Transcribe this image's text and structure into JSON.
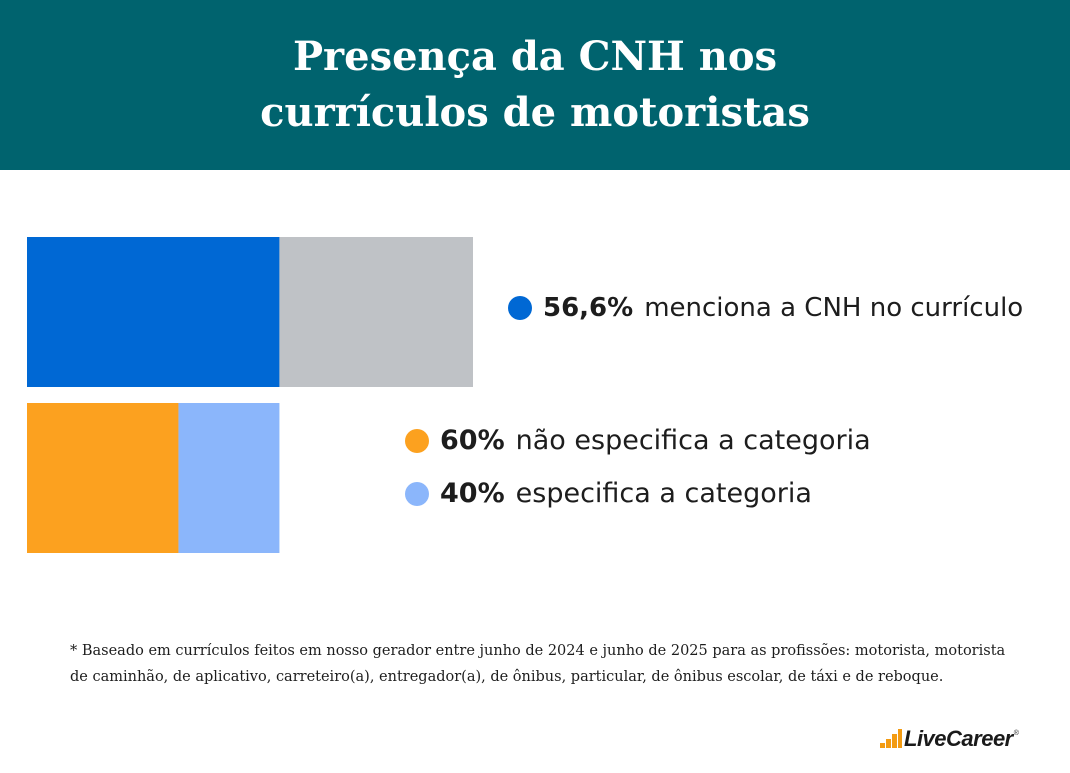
{
  "title": {
    "line1": "Presença da CNH nos",
    "line2": "currículos de motoristas"
  },
  "chart_data": {
    "type": "bar",
    "orientation": "horizontal-stacked",
    "bars": [
      {
        "segments": [
          {
            "value": 56.6,
            "color": "#0068d4"
          },
          {
            "value": 43.4,
            "color": "#bfc2c6"
          }
        ]
      },
      {
        "scale_of_parent": 0.566,
        "segments": [
          {
            "value": 60,
            "color": "#fca11f"
          },
          {
            "value": 40,
            "color": "#8bb6fb"
          }
        ]
      }
    ],
    "legend": [
      {
        "percent": "56,6%",
        "text": "menciona a CNH no currículo",
        "color": "#0068d4"
      },
      {
        "percent": "60%",
        "text": "não especifica a categoria",
        "color": "#fca11f"
      },
      {
        "percent": "40%",
        "text": "especifica a categoria",
        "color": "#8bb6fb"
      }
    ]
  },
  "footnote": {
    "line1": "* Baseado em currículos feitos em nosso gerador entre junho de 2024 e junho de 2025 para as profissões: motorista, motorista",
    "line2": "de caminhão, de aplicativo, carreteiro(a), entregador(a), de ônibus, particular, de ônibus escolar, de táxi e de reboque."
  },
  "brand": {
    "name": "LiveCareer",
    "reg": "®",
    "accent": "#f39b12",
    "header_color": "#00636e",
    "logo_icon": "livecareer-dots-icon"
  }
}
